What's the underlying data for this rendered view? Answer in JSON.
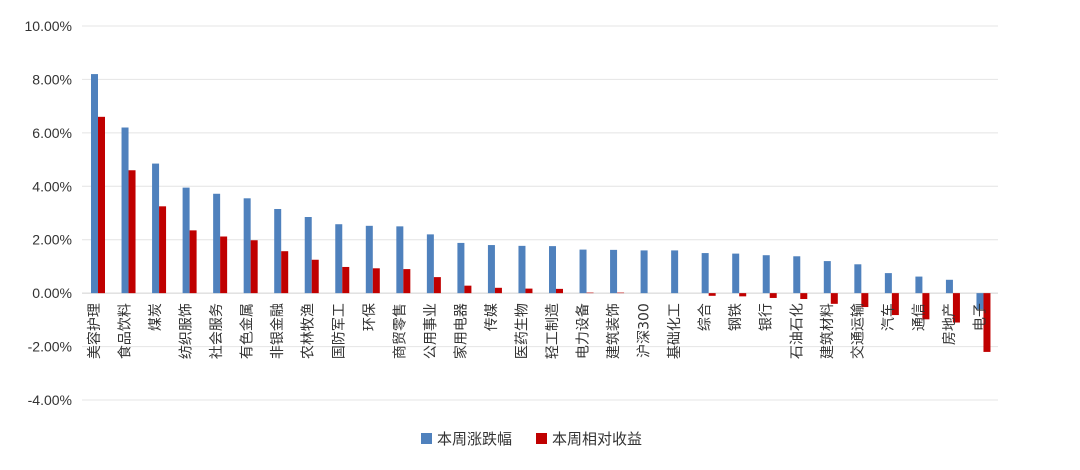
{
  "chart_data": {
    "type": "bar",
    "title": "",
    "xlabel": "",
    "ylabel": "",
    "ylim": [
      -4,
      10
    ],
    "y_tick_labels": [
      "10.00%",
      "8.00%",
      "6.00%",
      "4.00%",
      "2.00%",
      "0.00%",
      "-2.00%",
      "-4.00%"
    ],
    "y_tick_values": [
      10,
      8,
      6,
      4,
      2,
      0,
      -2,
      -4
    ],
    "grid": true,
    "legend_position": "bottom",
    "categories": [
      "美容护理",
      "食品饮料",
      "煤炭",
      "纺织服饰",
      "社会服务",
      "有色金属",
      "非银金融",
      "农林牧渔",
      "国防军工",
      "环保",
      "商贸零售",
      "公用事业",
      "家用电器",
      "传媒",
      "医药生物",
      "轻工制造",
      "电力设备",
      "建筑装饰",
      "沪深300",
      "基础化工",
      "综合",
      "钢铁",
      "银行",
      "石油石化",
      "建筑材料",
      "交通运输",
      "汽车",
      "通信",
      "房地产",
      "电子"
    ],
    "series": [
      {
        "name": "本周涨跌幅",
        "color": "#4f81bd",
        "values": [
          8.2,
          6.2,
          4.85,
          3.95,
          3.72,
          3.55,
          3.15,
          2.85,
          2.58,
          2.52,
          2.5,
          2.2,
          1.88,
          1.8,
          1.77,
          1.76,
          1.63,
          1.62,
          1.6,
          1.6,
          1.5,
          1.48,
          1.42,
          1.38,
          1.2,
          1.08,
          0.75,
          0.62,
          0.5,
          -0.6
        ]
      },
      {
        "name": "本周相对收益",
        "color": "#c00000",
        "values": [
          6.6,
          4.6,
          3.25,
          2.35,
          2.12,
          1.98,
          1.57,
          1.25,
          0.98,
          0.93,
          0.9,
          0.6,
          0.28,
          0.2,
          0.17,
          0.16,
          0.02,
          0.02,
          0,
          0,
          -0.1,
          -0.12,
          -0.18,
          -0.22,
          -0.4,
          -0.52,
          -0.82,
          -0.98,
          -1.1,
          -2.2
        ]
      }
    ]
  }
}
